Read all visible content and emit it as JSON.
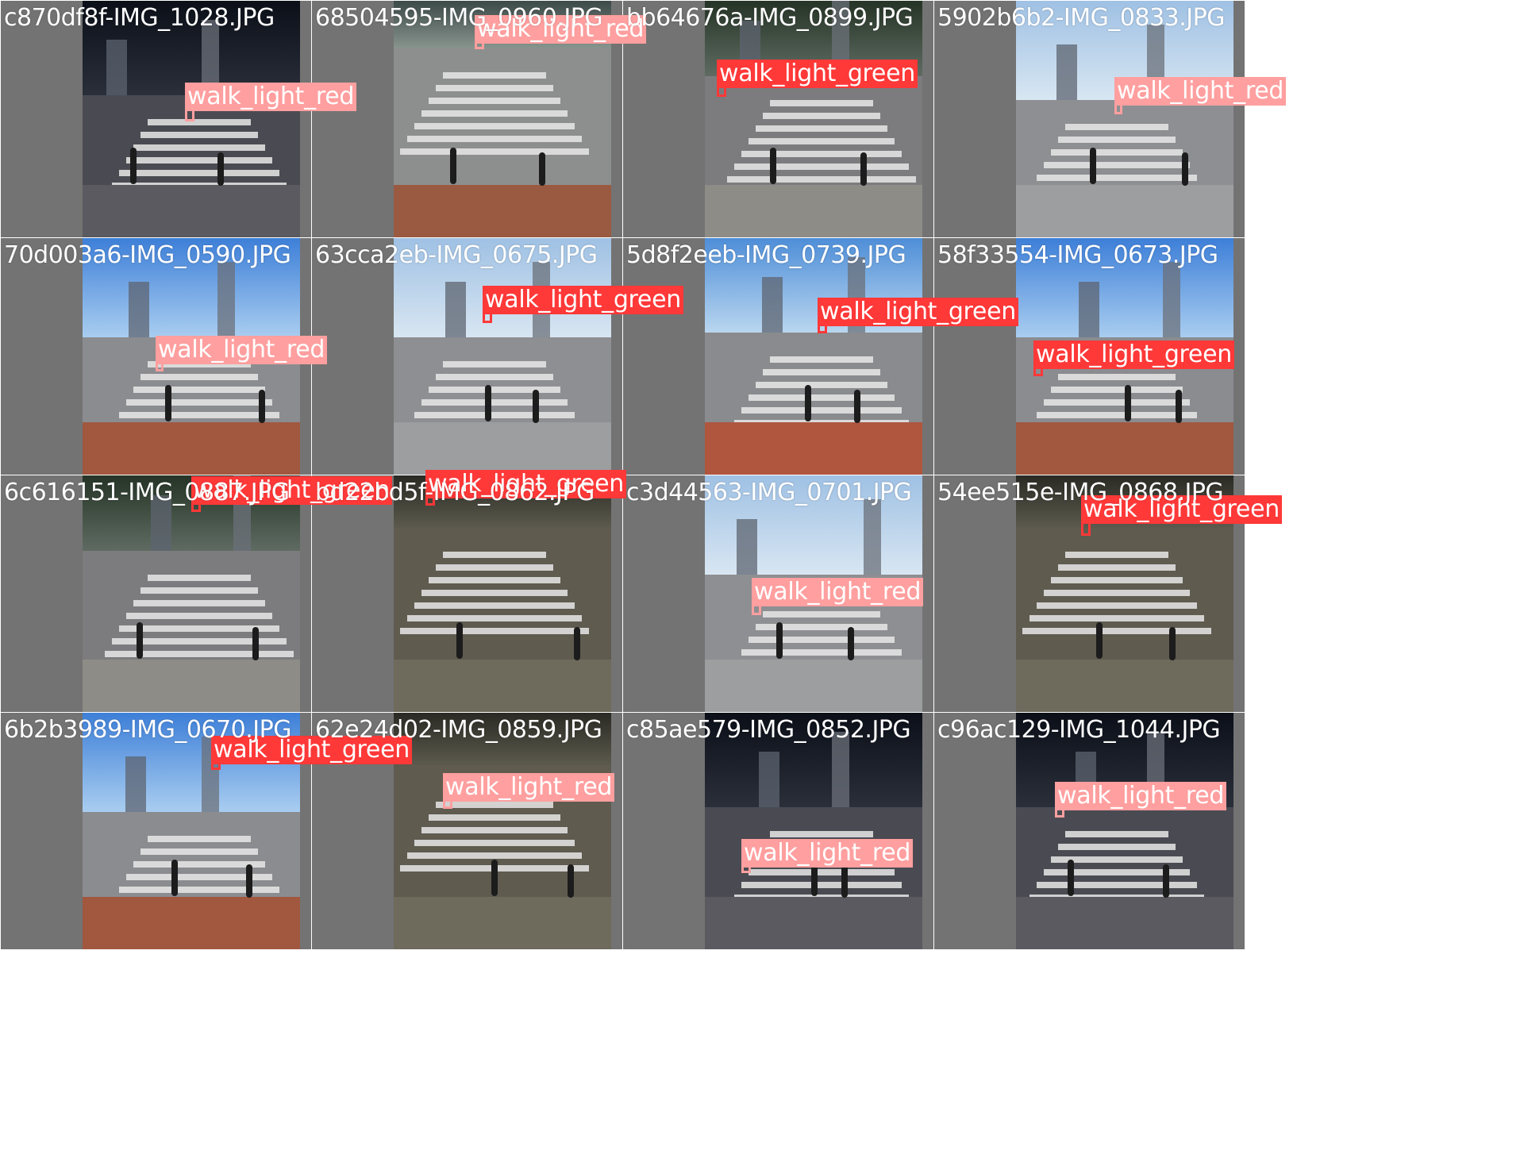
{
  "grid": {
    "tiles": [
      {
        "filename": "c870df8f-IMG_1028.JPG",
        "label": "walk_light_red",
        "scene": "night"
      },
      {
        "filename": "68504595-IMG_0960.JPG",
        "label": "walk_light_red",
        "scene": "dusk-brick"
      },
      {
        "filename": "bb64676a-IMG_0899.JPG",
        "label": "walk_light_green",
        "scene": "dusk"
      },
      {
        "filename": "5902b6b2-IMG_0833.JPG",
        "label": "walk_light_red",
        "scene": "day-city"
      },
      {
        "filename": "70d003a6-IMG_0590.JPG",
        "label": "walk_light_red",
        "scene": "day-sky"
      },
      {
        "filename": "63cca2eb-IMG_0675.JPG",
        "label": "walk_light_green",
        "scene": "day-city"
      },
      {
        "filename": "5d8f2eeb-IMG_0739.JPG",
        "label": "walk_light_green",
        "scene": "day-brick"
      },
      {
        "filename": "58f33554-IMG_0673.JPG",
        "label": "walk_light_green",
        "scene": "day-sky"
      },
      {
        "filename": "6c616151-IMG_0887.JPG",
        "label": "walk_light_green",
        "scene": "dusk"
      },
      {
        "filename": "bd22bd5f-IMG_0862.JPG",
        "label": "walk_light_green",
        "scene": "night-lit"
      },
      {
        "filename": "c3d44563-IMG_0701.JPG",
        "label": "walk_light_red",
        "scene": "day-city"
      },
      {
        "filename": "54ee515e-IMG_0868.JPG",
        "label": "walk_light_green",
        "scene": "night-lit"
      },
      {
        "filename": "6b2b3989-IMG_0670.JPG",
        "label": "walk_light_green",
        "scene": "day-sky"
      },
      {
        "filename": "62e24d02-IMG_0859.JPG",
        "label": "walk_light_red",
        "scene": "night-lit"
      },
      {
        "filename": "c85ae579-IMG_0852.JPG",
        "label": "walk_light_red",
        "scene": "night"
      },
      {
        "filename": "c96ac129-IMG_1044.JPG",
        "label": "walk_light_red",
        "scene": "night"
      }
    ]
  },
  "colors": {
    "walk_light_red": "#ff9f9f",
    "walk_light_green": "#ff3838",
    "tile_background": "#737373",
    "label_text": "#ffffff"
  },
  "icons": {
    "tile_photo": "crosswalk-photo-icon"
  }
}
